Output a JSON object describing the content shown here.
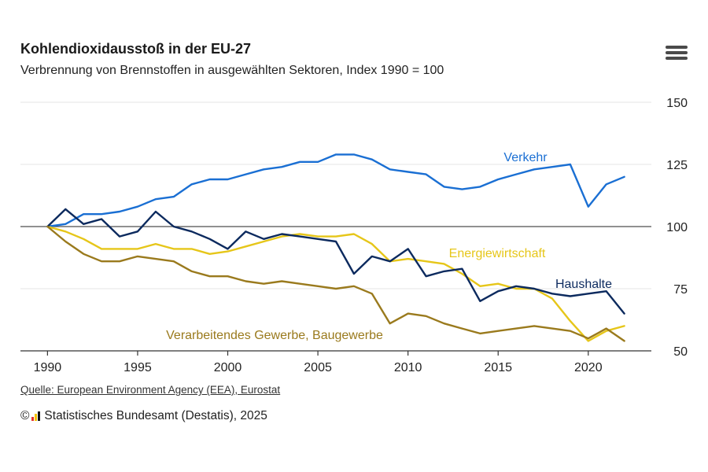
{
  "header": {
    "title": "Kohlendioxidausstoß in der EU-27",
    "subtitle": "Verbrennung von Brennstoffen in ausgewählten Sektoren, Index 1990 = 100",
    "menu_icon": "hamburger-menu-icon"
  },
  "footer": {
    "source": "Quelle: European Environment Agency (EEA), Eurostat",
    "copyright_symbol": "©",
    "copyright": "Statistisches Bundesamt (Destatis), 2025",
    "logo_colors": [
      "#e5342a",
      "#f5c400",
      "#111111"
    ]
  },
  "chart_data": {
    "type": "line",
    "xlim": [
      1988.5,
      2023.5
    ],
    "ylim": [
      50,
      150
    ],
    "x_ticks": [
      1990,
      1995,
      2000,
      2005,
      2010,
      2015,
      2020
    ],
    "y_ticks": [
      50,
      75,
      100,
      125,
      150
    ],
    "y_axis_side": "right",
    "grid": "horizontal",
    "reference_line": 100,
    "x": [
      1990,
      1991,
      1992,
      1993,
      1994,
      1995,
      1996,
      1997,
      1998,
      1999,
      2000,
      2001,
      2002,
      2003,
      2004,
      2005,
      2006,
      2007,
      2008,
      2009,
      2010,
      2011,
      2012,
      2013,
      2014,
      2015,
      2016,
      2017,
      2018,
      2019,
      2020,
      2021,
      2022
    ],
    "series": [
      {
        "name": "Verkehr",
        "color": "#1a6fd3",
        "values": [
          100,
          101,
          105,
          105,
          106,
          108,
          111,
          112,
          117,
          119,
          119,
          121,
          123,
          124,
          126,
          126,
          129,
          129,
          127,
          123,
          122,
          121,
          116,
          115,
          116,
          119,
          121,
          123,
          124,
          125,
          108,
          117,
          120
        ]
      },
      {
        "name": "Energiewirtschaft",
        "color": "#e6c619",
        "values": [
          100,
          98,
          95,
          91,
          91,
          91,
          93,
          91,
          91,
          89,
          90,
          92,
          94,
          96,
          97,
          96,
          96,
          97,
          93,
          86,
          87,
          86,
          85,
          81,
          76,
          77,
          75,
          75,
          71,
          62,
          54,
          58,
          60
        ]
      },
      {
        "name": "Haushalte",
        "color": "#0c2a5e",
        "values": [
          100,
          107,
          101,
          103,
          96,
          98,
          106,
          100,
          98,
          95,
          91,
          98,
          95,
          97,
          96,
          95,
          94,
          81,
          88,
          86,
          91,
          80,
          82,
          83,
          70,
          74,
          76,
          75,
          73,
          72,
          73,
          74,
          65
        ]
      },
      {
        "name": "Verarbeitendes Gewerbe, Baugewerbe",
        "color": "#9a7a1d",
        "values": [
          100,
          94,
          89,
          86,
          86,
          88,
          87,
          86,
          82,
          80,
          80,
          78,
          77,
          78,
          77,
          76,
          75,
          76,
          73,
          61,
          65,
          64,
          61,
          59,
          57,
          58,
          59,
          60,
          59,
          58,
          55,
          59,
          54
        ]
      }
    ]
  }
}
